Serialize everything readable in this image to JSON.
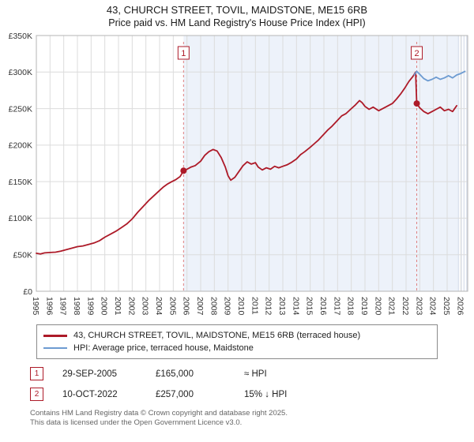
{
  "header": {
    "title_line1": "43, CHURCH STREET, TOVIL, MAIDSTONE, ME15 6RB",
    "title_line2": "Price paid vs. HM Land Registry's House Price Index (HPI)"
  },
  "chart_data": {
    "type": "line",
    "title": "Price paid vs. HPI",
    "ylim": [
      0,
      350
    ],
    "xlim": [
      1995,
      2026.5
    ],
    "y_axis": {
      "tick_values": [
        0,
        50,
        100,
        150,
        200,
        250,
        300,
        350
      ],
      "tick_labels": [
        "£0",
        "£50K",
        "£100K",
        "£150K",
        "£200K",
        "£250K",
        "£300K",
        "£350K"
      ]
    },
    "x_axis": {
      "tick_values": [
        1995,
        1996,
        1997,
        1998,
        1999,
        2000,
        2001,
        2002,
        2003,
        2004,
        2005,
        2006,
        2007,
        2008,
        2009,
        2010,
        2011,
        2012,
        2013,
        2014,
        2015,
        2016,
        2017,
        2018,
        2019,
        2020,
        2021,
        2022,
        2023,
        2024,
        2025,
        2026
      ]
    },
    "grid": true,
    "legend_position": "bottom",
    "shaded_region": [
      2005.75,
      2025.83
    ],
    "hatched_region": [
      2025.83,
      2026.5
    ],
    "colors": {
      "price_line": "#ad1a28",
      "hpi_line": "#6d9bd1",
      "event_line": "#e08080",
      "shade": "#edf2fa",
      "grid": "#dcdcdc"
    },
    "series": [
      {
        "name": "43, CHURCH STREET, TOVIL, MAIDSTONE, ME15 6RB (terraced house)",
        "color": "#ad1a28",
        "points": [
          [
            1995.0,
            52
          ],
          [
            1995.3,
            51
          ],
          [
            1995.6,
            52.5
          ],
          [
            1996.0,
            53
          ],
          [
            1996.4,
            53.5
          ],
          [
            1996.8,
            55
          ],
          [
            1997.2,
            57
          ],
          [
            1997.6,
            59
          ],
          [
            1998.0,
            61
          ],
          [
            1998.4,
            62
          ],
          [
            1998.8,
            64
          ],
          [
            1999.2,
            66
          ],
          [
            1999.6,
            69
          ],
          [
            2000.0,
            74
          ],
          [
            2000.4,
            78
          ],
          [
            2000.8,
            82
          ],
          [
            2001.2,
            87
          ],
          [
            2001.6,
            92
          ],
          [
            2002.0,
            99
          ],
          [
            2002.4,
            108
          ],
          [
            2002.8,
            116
          ],
          [
            2003.2,
            124
          ],
          [
            2003.6,
            131
          ],
          [
            2004.0,
            138
          ],
          [
            2004.3,
            143
          ],
          [
            2004.6,
            147
          ],
          [
            2004.9,
            150
          ],
          [
            2005.2,
            153
          ],
          [
            2005.5,
            157
          ],
          [
            2005.75,
            165
          ],
          [
            2006.0,
            167
          ],
          [
            2006.3,
            170
          ],
          [
            2006.6,
            172
          ],
          [
            2007.0,
            178
          ],
          [
            2007.3,
            186
          ],
          [
            2007.6,
            191
          ],
          [
            2007.9,
            194
          ],
          [
            2008.2,
            192
          ],
          [
            2008.5,
            183
          ],
          [
            2008.8,
            170
          ],
          [
            2009.0,
            158
          ],
          [
            2009.2,
            152
          ],
          [
            2009.5,
            156
          ],
          [
            2009.8,
            164
          ],
          [
            2010.1,
            172
          ],
          [
            2010.4,
            177
          ],
          [
            2010.7,
            174
          ],
          [
            2011.0,
            176
          ],
          [
            2011.2,
            170
          ],
          [
            2011.5,
            166
          ],
          [
            2011.8,
            169
          ],
          [
            2012.1,
            167
          ],
          [
            2012.4,
            171
          ],
          [
            2012.7,
            169
          ],
          [
            2013.0,
            171
          ],
          [
            2013.3,
            173
          ],
          [
            2013.6,
            176
          ],
          [
            2014.0,
            181
          ],
          [
            2014.3,
            187
          ],
          [
            2014.6,
            191
          ],
          [
            2015.0,
            197
          ],
          [
            2015.3,
            202
          ],
          [
            2015.6,
            207
          ],
          [
            2016.0,
            215
          ],
          [
            2016.3,
            221
          ],
          [
            2016.6,
            226
          ],
          [
            2017.0,
            234
          ],
          [
            2017.3,
            240
          ],
          [
            2017.6,
            243
          ],
          [
            2018.0,
            250
          ],
          [
            2018.3,
            255
          ],
          [
            2018.6,
            261
          ],
          [
            2018.8,
            258
          ],
          [
            2019.0,
            253
          ],
          [
            2019.3,
            249
          ],
          [
            2019.6,
            252
          ],
          [
            2020.0,
            247
          ],
          [
            2020.3,
            250
          ],
          [
            2020.6,
            253
          ],
          [
            2021.0,
            257
          ],
          [
            2021.3,
            263
          ],
          [
            2021.6,
            270
          ],
          [
            2021.9,
            278
          ],
          [
            2022.2,
            287
          ],
          [
            2022.5,
            294
          ],
          [
            2022.7,
            300
          ],
          [
            2022.78,
            257
          ],
          [
            2023.0,
            251
          ],
          [
            2023.3,
            246
          ],
          [
            2023.6,
            243
          ],
          [
            2023.9,
            246
          ],
          [
            2024.2,
            249
          ],
          [
            2024.5,
            252
          ],
          [
            2024.8,
            247
          ],
          [
            2025.1,
            249
          ],
          [
            2025.4,
            246
          ],
          [
            2025.7,
            254
          ]
        ]
      },
      {
        "name": "HPI: Average price, terraced house, Maidstone",
        "color": "#6d9bd1",
        "points": [
          [
            2022.6,
            296
          ],
          [
            2022.78,
            301
          ],
          [
            2023.0,
            297
          ],
          [
            2023.3,
            291
          ],
          [
            2023.6,
            288
          ],
          [
            2023.9,
            290
          ],
          [
            2024.2,
            293
          ],
          [
            2024.5,
            290
          ],
          [
            2024.8,
            292
          ],
          [
            2025.1,
            295
          ],
          [
            2025.4,
            292
          ],
          [
            2025.7,
            296
          ],
          [
            2026.0,
            298
          ],
          [
            2026.3,
            301
          ]
        ]
      }
    ],
    "markers": [
      {
        "label": "1",
        "x": 2005.75,
        "y": 165
      },
      {
        "label": "2",
        "x": 2022.78,
        "y": 257
      }
    ]
  },
  "legend": {
    "items": [
      {
        "label": "43, CHURCH STREET, TOVIL, MAIDSTONE, ME15 6RB (terraced house)",
        "color": "#ad1a28"
      },
      {
        "label": "HPI: Average price, terraced house, Maidstone",
        "color": "#6d9bd1"
      }
    ]
  },
  "annotations": [
    {
      "num": "1",
      "date": "29-SEP-2005",
      "price": "£165,000",
      "relation": "≈ HPI"
    },
    {
      "num": "2",
      "date": "10-OCT-2022",
      "price": "£257,000",
      "relation": "15% ↓ HPI"
    }
  ],
  "footer": {
    "line1": "Contains HM Land Registry data © Crown copyright and database right 2025.",
    "line2": "This data is licensed under the Open Government Licence v3.0."
  }
}
